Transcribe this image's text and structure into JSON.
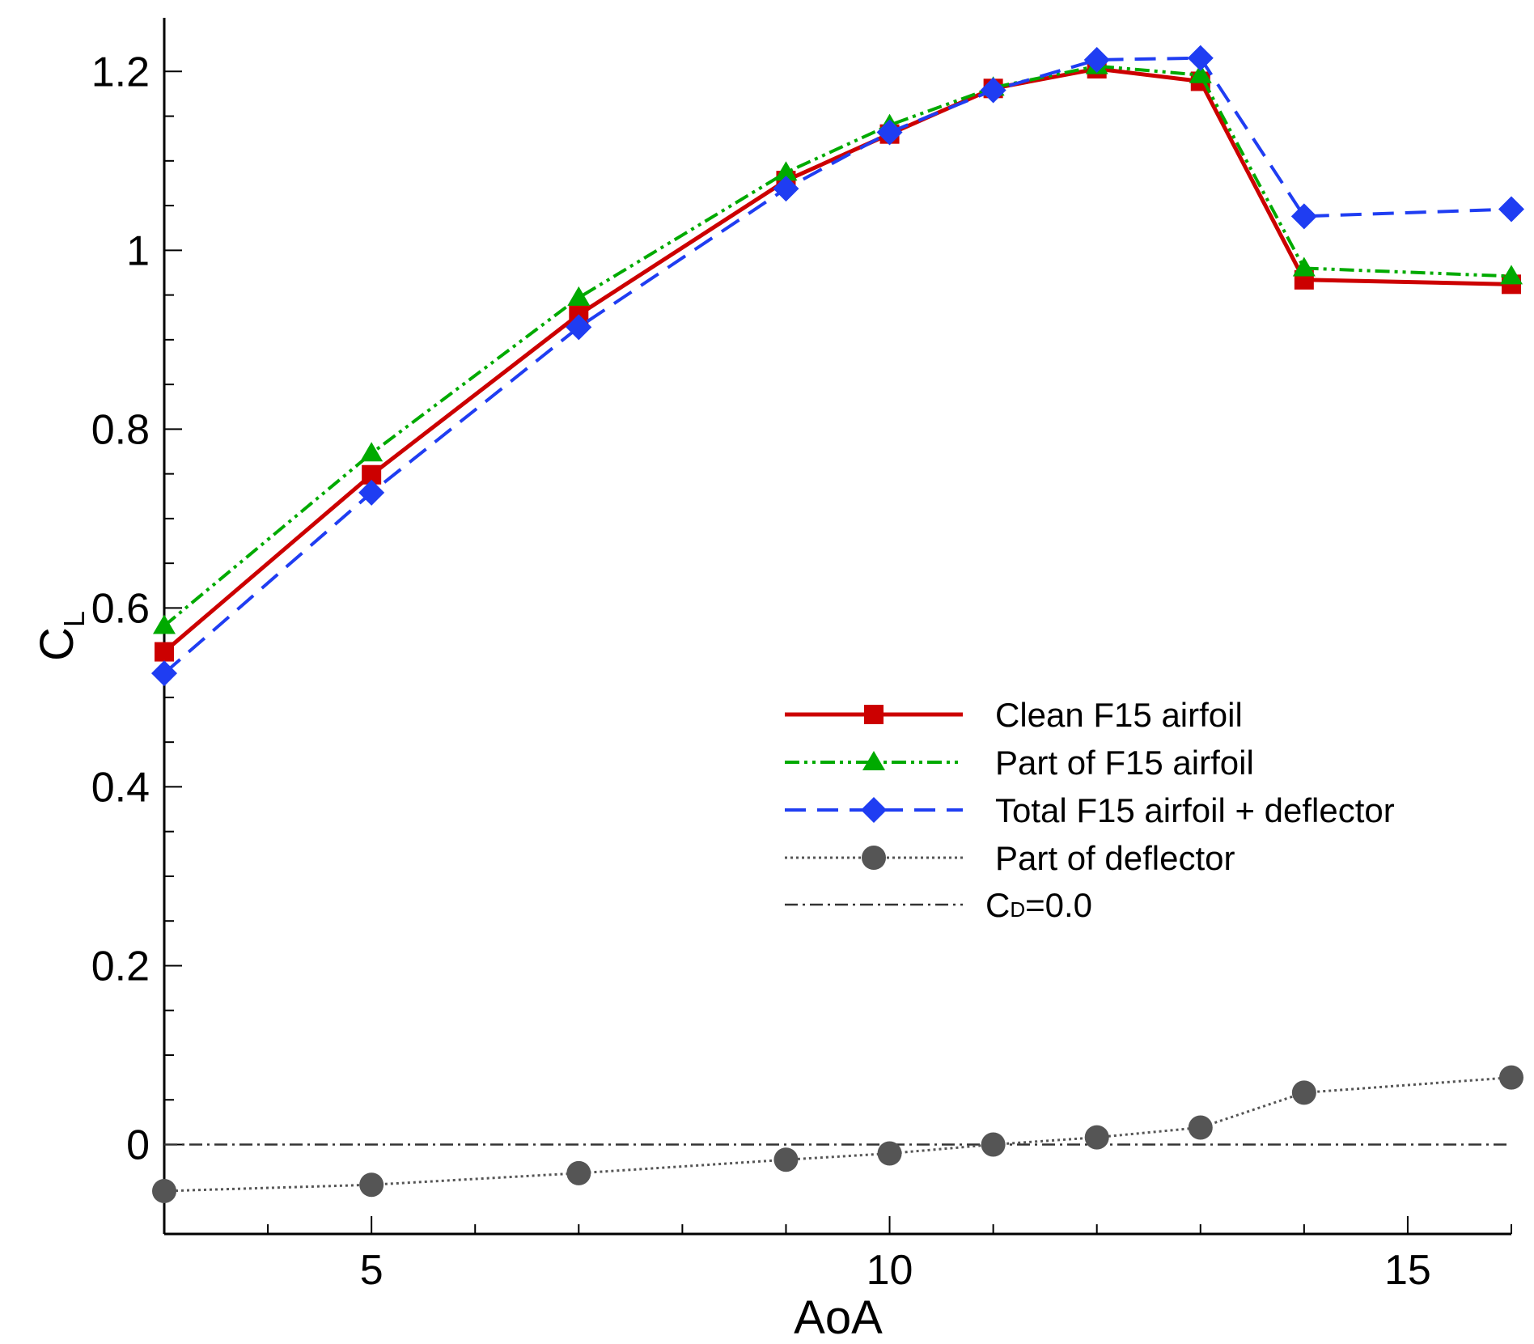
{
  "chart_data": {
    "type": "line",
    "title": "",
    "xlabel": "AoA",
    "ylabel": {
      "main": "C",
      "sub": "L"
    },
    "xlim": [
      3,
      16
    ],
    "ylim": [
      -0.1,
      1.26
    ],
    "x_ticks": [
      5,
      10,
      15
    ],
    "x_tick_labels": [
      "5",
      "10",
      "15"
    ],
    "y_ticks": [
      0,
      0.2,
      0.4,
      0.6,
      0.8,
      1,
      1.2
    ],
    "y_tick_labels": [
      "0",
      "0.2",
      "0.4",
      "0.6",
      "0.8",
      "1",
      "1.2"
    ],
    "legend_position": "center-right",
    "series": [
      {
        "name": "Clean F15 airfoil",
        "color": "#cc0000",
        "line_style": "solid",
        "marker": "square",
        "x": [
          3,
          5,
          7,
          9,
          10,
          11,
          12,
          13,
          14,
          16
        ],
        "y": [
          0.551,
          0.749,
          0.928,
          1.078,
          1.13,
          1.181,
          1.203,
          1.189,
          0.967,
          0.962
        ]
      },
      {
        "name": "Part of F15 airfoil",
        "color": "#00aa00",
        "line_style": "dash-dot-dot",
        "marker": "triangle",
        "x": [
          3,
          5,
          7,
          9,
          10,
          11,
          12,
          13,
          14,
          16
        ],
        "y": [
          0.58,
          0.773,
          0.947,
          1.087,
          1.14,
          1.182,
          1.206,
          1.196,
          0.98,
          0.971
        ]
      },
      {
        "name": "Total F15 airfoil + deflector",
        "color": "#1f3df2",
        "line_style": "dashed",
        "marker": "diamond",
        "x": [
          3,
          5,
          7,
          9,
          10,
          11,
          12,
          13,
          14,
          16
        ],
        "y": [
          0.527,
          0.729,
          0.914,
          1.069,
          1.132,
          1.179,
          1.213,
          1.215,
          1.038,
          1.046
        ]
      },
      {
        "name": "Part of deflector",
        "color": "#555555",
        "line_style": "dotted",
        "marker": "circle",
        "x": [
          3,
          5,
          7,
          9,
          10,
          11,
          12,
          13,
          14,
          16
        ],
        "y": [
          -0.052,
          -0.045,
          -0.032,
          -0.017,
          -0.01,
          0.0,
          0.008,
          0.019,
          0.058,
          0.075
        ]
      },
      {
        "name": {
          "main": "C",
          "sub": "D",
          "rest": "=0.0"
        },
        "color": "#333333",
        "line_style": "dash-dot",
        "marker": "none",
        "x": [
          3,
          16
        ],
        "y": [
          0,
          0
        ]
      }
    ]
  }
}
